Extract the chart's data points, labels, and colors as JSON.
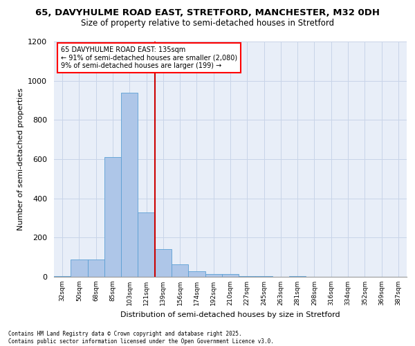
{
  "title_line1": "65, DAVYHULME ROAD EAST, STRETFORD, MANCHESTER, M32 0DH",
  "title_line2": "Size of property relative to semi-detached houses in Stretford",
  "xlabel": "Distribution of semi-detached houses by size in Stretford",
  "ylabel": "Number of semi-detached properties",
  "categories": [
    "32sqm",
    "50sqm",
    "68sqm",
    "85sqm",
    "103sqm",
    "121sqm",
    "139sqm",
    "156sqm",
    "174sqm",
    "192sqm",
    "210sqm",
    "227sqm",
    "245sqm",
    "263sqm",
    "281sqm",
    "298sqm",
    "316sqm",
    "334sqm",
    "352sqm",
    "369sqm",
    "387sqm"
  ],
  "bar_values": [
    5,
    90,
    90,
    610,
    940,
    330,
    140,
    65,
    30,
    15,
    15,
    5,
    5,
    0,
    5,
    0,
    0,
    0,
    0,
    0,
    0
  ],
  "bar_color": "#aec6e8",
  "bar_edge_color": "#5a9fd4",
  "grid_color": "#c8d4e8",
  "background_color": "#e8eef8",
  "vline_x": 6,
  "vline_color": "#cc0000",
  "annotation_text": "65 DAVYHULME ROAD EAST: 135sqm\n← 91% of semi-detached houses are smaller (2,080)\n9% of semi-detached houses are larger (199) →",
  "ylim": [
    0,
    1200
  ],
  "yticks": [
    0,
    200,
    400,
    600,
    800,
    1000,
    1200
  ],
  "footer_line1": "Contains HM Land Registry data © Crown copyright and database right 2025.",
  "footer_line2": "Contains public sector information licensed under the Open Government Licence v3.0."
}
